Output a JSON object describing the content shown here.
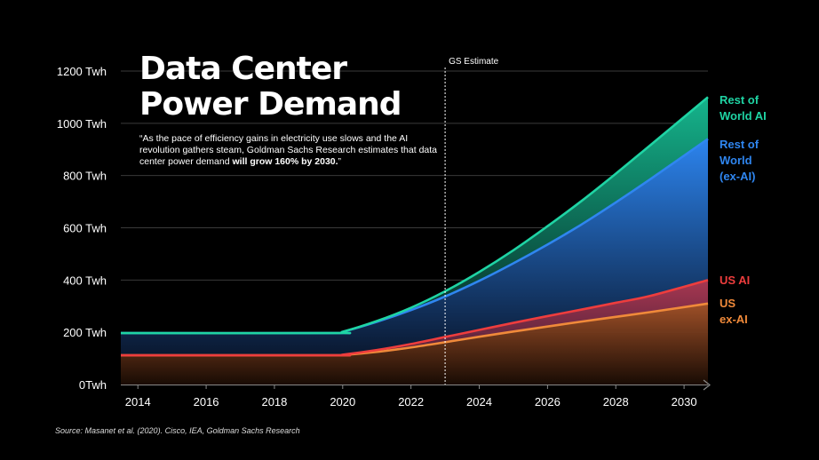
{
  "title_lines": [
    "Data Center",
    "Power Demand"
  ],
  "quote_prefix": "“As the pace of efficiency gains in electricity use slows and the AI revolution gathers steam, Goldman Sachs Research estimates that data center power demand ",
  "quote_bold": "will grow 160% by 2030.",
  "quote_suffix": "”",
  "source": "Source: Masanet et al. (2020). Cisco, IEA, Goldman Sachs Research",
  "chart_data": {
    "type": "area",
    "stacked": true,
    "x": [
      2013.5,
      2019.7,
      2020,
      2021,
      2022,
      2023,
      2024,
      2025,
      2026,
      2027,
      2028,
      2029,
      2030.7
    ],
    "series": [
      {
        "name": "US ex-AI",
        "color": "#f08a3a",
        "values": [
          112,
          112,
          113,
          125,
          142,
          162,
          183,
          203,
          222,
          241,
          259,
          277,
          310
        ]
      },
      {
        "name": "US AI",
        "color": "#ee3d3d",
        "values": [
          0,
          0,
          1,
          7,
          13,
          20,
          26,
          33,
          40,
          46,
          54,
          62,
          90
        ]
      },
      {
        "name": "Rest of World (ex-AI)",
        "color": "#2f86f0",
        "values": [
          85,
          85,
          88,
          108,
          130,
          155,
          188,
          228,
          274,
          326,
          384,
          446,
          540
        ]
      },
      {
        "name": "Rest of World AI",
        "color": "#1fd4a4",
        "values": [
          0,
          0,
          0,
          3,
          9,
          20,
          34,
          50,
          70,
          90,
          110,
          130,
          160
        ]
      }
    ],
    "label_texts": [
      {
        "key": "row_ai",
        "lines": [
          "Rest of",
          "World AI"
        ],
        "color": "#1fd4a4"
      },
      {
        "key": "row_exai",
        "lines": [
          "Rest of",
          "World",
          "(ex-AI)"
        ],
        "color": "#2f86f0"
      },
      {
        "key": "us_ai",
        "lines": [
          "US AI"
        ],
        "color": "#ee3d3d"
      },
      {
        "key": "us_exai",
        "lines": [
          "US",
          "ex-AI"
        ],
        "color": "#f08a3a"
      }
    ],
    "xticks": [
      2014,
      2016,
      2018,
      2020,
      2022,
      2024,
      2026,
      2028,
      2030
    ],
    "yticks": [
      0,
      200,
      400,
      600,
      800,
      1000,
      1200
    ],
    "ytick_labels": [
      "0Twh",
      "200 Twh",
      "400 Twh",
      "600 Twh",
      "800 Twh",
      "1000 Twh",
      "1200 Twh"
    ],
    "xlim": [
      2013.5,
      2030.7
    ],
    "ylim": [
      0,
      1200
    ],
    "estimate_start": 2023,
    "estimate_label": "GS Estimate",
    "grid": true
  }
}
